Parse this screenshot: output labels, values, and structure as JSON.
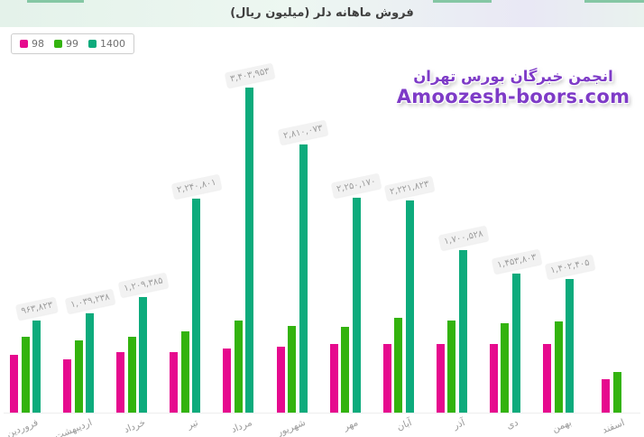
{
  "header": {
    "title": "فروش ماهانه دلر (میلیون ریال)"
  },
  "legend": {
    "items": [
      {
        "label": "98",
        "color": "#e60a8e"
      },
      {
        "label": "99",
        "color": "#33b30e"
      },
      {
        "label": "1400",
        "color": "#0dab7c"
      }
    ]
  },
  "watermark": {
    "line1": "انجمن خبرگان بورس تهران",
    "line2": "Amoozesh-boors.com",
    "color": "#7e3bc7"
  },
  "chart_data": {
    "type": "bar",
    "title": "فروش ماهانه دلر (میلیون ریال)",
    "value_unit": "میلیون ریال",
    "categories": [
      "فروردین",
      "اردیبهشت",
      "خرداد",
      "تیر",
      "مرداد",
      "شهریور",
      "مهر",
      "آبان",
      "آذر",
      "دی",
      "بهمن",
      "اسفند"
    ],
    "series": [
      {
        "name": "98",
        "color": "#e60a8e",
        "values": [
          605000,
          558000,
          633000,
          633000,
          671000,
          690000,
          718000,
          718000,
          718000,
          718000,
          718000,
          350000
        ]
      },
      {
        "name": "99",
        "color": "#33b30e",
        "values": [
          794000,
          756000,
          794000,
          851000,
          964000,
          907000,
          898000,
          992000,
          964000,
          936000,
          954000,
          425000
        ]
      },
      {
        "name": "1400",
        "color": "#0dab7c",
        "values": [
          963823,
          1039238,
          1209385,
          2240801,
          3403953,
          2810073,
          2250170,
          2221823,
          1700528,
          1453803,
          1402405,
          null
        ],
        "data_labels": [
          "۹۶۳,۸۲۳",
          "۱,۰۳۹,۲۳۸",
          "۱,۲۰۹,۳۸۵",
          "۲,۲۴۰,۸۰۱",
          "۳,۴۰۳,۹۵۳",
          "۲,۸۱۰,۰۷۳",
          "۲,۲۵۰,۱۷۰",
          "۲,۲۲۱,۸۲۳",
          "۱,۷۰۰,۵۲۸",
          "۱,۴۵۳,۸۰۳",
          "۱,۴۰۲,۴۰۵",
          null
        ]
      }
    ],
    "ylim": [
      0,
      3500000
    ],
    "grid": false,
    "legend_position": "top-left",
    "x_axis_labels_rotated": true
  }
}
